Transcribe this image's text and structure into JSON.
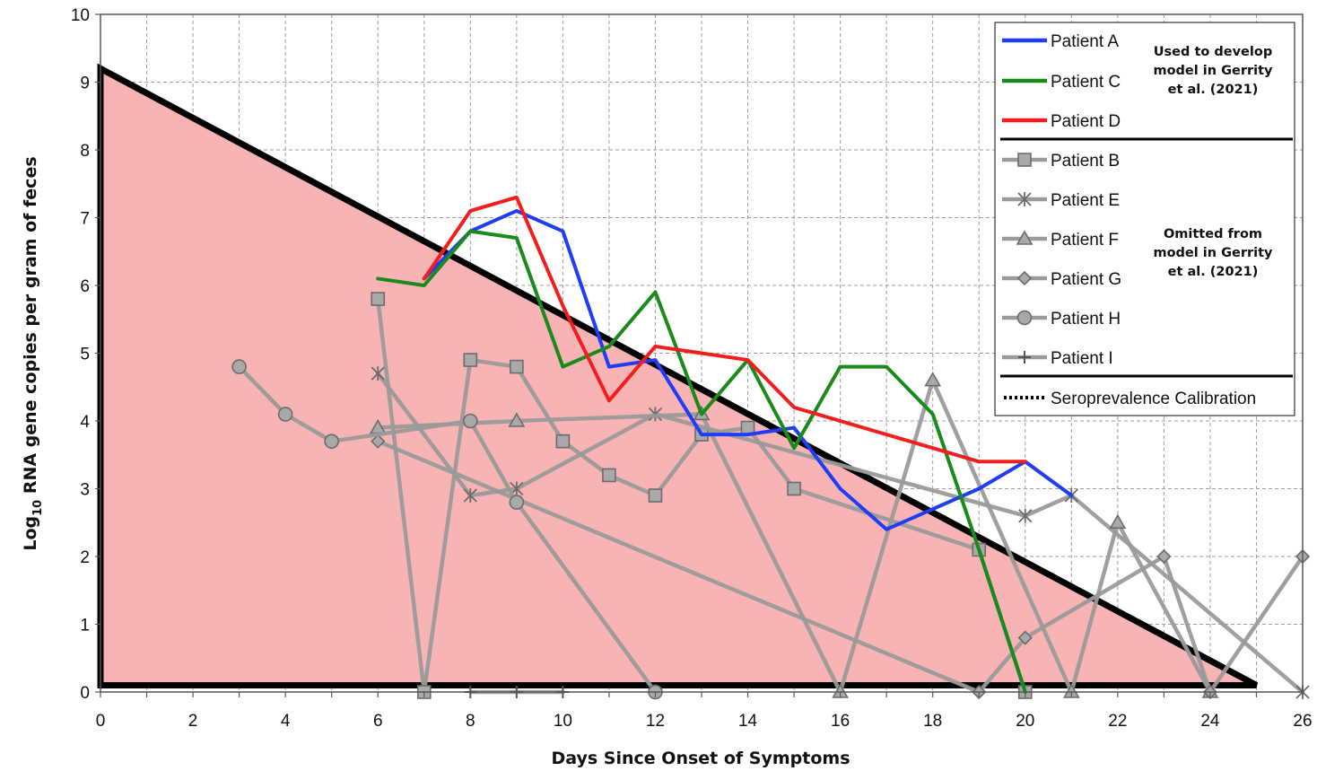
{
  "chart_data": {
    "type": "line",
    "xlabel": "Days Since Onset of Symptoms",
    "ylabel": {
      "prefix": "Log",
      "sub": "10",
      "suffix": " RNA gene copies per gram of feces"
    },
    "xlim": [
      0,
      26
    ],
    "ylim": [
      0,
      10
    ],
    "x_ticks": [
      "0",
      "2",
      "4",
      "6",
      "8",
      "10",
      "12",
      "14",
      "16",
      "18",
      "20",
      "22",
      "24",
      "26"
    ],
    "y_ticks": [
      "0",
      "1",
      "2",
      "3",
      "4",
      "5",
      "6",
      "7",
      "8",
      "9",
      "10"
    ],
    "grid": true,
    "legend_position": "top-right",
    "colors": {
      "blue": "#1f3df5",
      "green": "#1a8a1a",
      "red": "#f21d1d",
      "gray": "#9a9a9a",
      "marker_fill": "#a9a9a9",
      "region_fill": "#f8b3b5",
      "region_edge": "#000000"
    },
    "region": {
      "name": "Seroprevalence Calibration",
      "points": [
        [
          0,
          9.2
        ],
        [
          25,
          0.1
        ],
        [
          0,
          0.1
        ]
      ]
    },
    "legend_groups": [
      {
        "note": [
          "Used to develop",
          "model in Gerrity",
          "et al. (2021)"
        ],
        "items": [
          "Patient A",
          "Patient C",
          "Patient D"
        ]
      },
      {
        "note": [
          "Omitted from",
          "model in Gerrity",
          "et al. (2021)"
        ],
        "items": [
          "Patient B",
          "Patient E",
          "Patient F",
          "Patient G",
          "Patient H",
          "Patient I"
        ]
      },
      {
        "note": [],
        "items": [
          "Seroprevalence Calibration"
        ]
      }
    ],
    "series": [
      {
        "name": "Patient A",
        "color": "#1f3df5",
        "marker": "none",
        "x": [
          7,
          8,
          9,
          10,
          11,
          12,
          13,
          14,
          15,
          16,
          17,
          18,
          19,
          20,
          21
        ],
        "y": [
          6.1,
          6.8,
          7.1,
          6.8,
          4.8,
          4.9,
          3.8,
          3.8,
          3.9,
          3.0,
          2.4,
          2.7,
          3.0,
          3.4,
          2.9
        ]
      },
      {
        "name": "Patient C",
        "color": "#1a8a1a",
        "marker": "none",
        "x": [
          6,
          7,
          8,
          9,
          10,
          11,
          12,
          13,
          14,
          15,
          16,
          17,
          18,
          19,
          20
        ],
        "y": [
          6.1,
          6.0,
          6.8,
          6.7,
          4.8,
          5.1,
          5.9,
          4.1,
          4.9,
          3.6,
          4.8,
          4.8,
          4.1,
          2.1,
          0.0
        ]
      },
      {
        "name": "Patient D",
        "color": "#f21d1d",
        "marker": "none",
        "x": [
          7,
          8,
          9,
          10,
          11,
          12,
          14,
          15,
          18,
          19,
          20
        ],
        "y": [
          6.1,
          7.1,
          7.3,
          5.7,
          4.3,
          5.1,
          4.9,
          4.2,
          3.6,
          3.4,
          3.4
        ]
      },
      {
        "name": "Patient B",
        "color": "#9a9a9a",
        "marker": "square",
        "x": [
          6,
          7,
          8,
          9,
          10,
          11,
          12,
          13,
          14,
          15,
          19,
          20
        ],
        "y": [
          5.8,
          0.0,
          4.9,
          4.8,
          3.7,
          3.2,
          2.9,
          3.8,
          3.9,
          3.0,
          2.1,
          0.0
        ]
      },
      {
        "name": "Patient E",
        "color": "#9a9a9a",
        "marker": "asterisk",
        "x": [
          6,
          8,
          9,
          12,
          20,
          21,
          26
        ],
        "y": [
          4.7,
          2.9,
          3.0,
          4.1,
          2.6,
          2.9,
          0.0
        ]
      },
      {
        "name": "Patient F",
        "color": "#9a9a9a",
        "marker": "triangle",
        "x": [
          6,
          9,
          13,
          16,
          18,
          21,
          22,
          24
        ],
        "y": [
          3.9,
          4.0,
          4.1,
          0.0,
          4.6,
          0.0,
          2.5,
          0.0
        ]
      },
      {
        "name": "Patient G",
        "color": "#9a9a9a",
        "marker": "diamond",
        "x": [
          6,
          19,
          20,
          23,
          24,
          26
        ],
        "y": [
          3.7,
          0.0,
          0.8,
          2.0,
          0.0,
          2.0
        ]
      },
      {
        "name": "Patient H",
        "color": "#9a9a9a",
        "marker": "circle",
        "x": [
          3,
          4,
          5,
          8,
          9,
          12
        ],
        "y": [
          4.8,
          4.1,
          3.7,
          4.0,
          2.8,
          0.0
        ]
      },
      {
        "name": "Patient I",
        "color": "#9a9a9a",
        "marker": "plus",
        "x": [
          8,
          9,
          10
        ],
        "y": [
          0.0,
          0.0,
          0.0
        ]
      }
    ]
  }
}
